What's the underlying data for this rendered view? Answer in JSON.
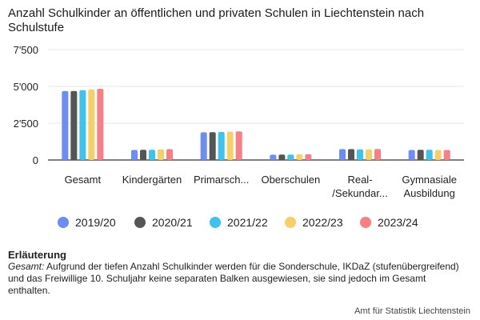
{
  "title": "Anzahl Schulkinder an öffentlichen und privaten Schulen in Liechtenstein nach Schulstufe",
  "legend": [
    {
      "label": "2019/20",
      "color": "#6b8ef5"
    },
    {
      "label": "2020/21",
      "color": "#555555"
    },
    {
      "label": "2021/22",
      "color": "#3cc3ef"
    },
    {
      "label": "2022/23",
      "color": "#f5cf67"
    },
    {
      "label": "2023/24",
      "color": "#f77f85"
    }
  ],
  "note": {
    "heading": "Erläuterung",
    "lead": "Gesamt:",
    "text": " Aufgrund der tiefen Anzahl Schulkinder werden für die Sonderschule, IKDaZ (stufenübergreifend) und das Freiwillige 10. Schuljahr keine separaten Balken ausgewiesen, sie sind jedoch im Gesamt enthalten."
  },
  "source": "Amt für Statistik Liechtenstein",
  "chart_data": {
    "type": "bar",
    "title": "Anzahl Schulkinder an öffentlichen und privaten Schulen in Liechtenstein nach Schulstufe",
    "xlabel": "",
    "ylabel": "",
    "ylim": [
      0,
      7500
    ],
    "yticks": [
      0,
      2500,
      5000,
      7500
    ],
    "ytick_labels": [
      "0",
      "2'500",
      "5'000",
      "7'500"
    ],
    "grid": true,
    "legend_position": "bottom",
    "categories": [
      [
        "Gesamt"
      ],
      [
        "Kindergärten"
      ],
      [
        "Primarsch..."
      ],
      [
        "Oberschulen"
      ],
      [
        "Real-",
        "/Sekundar..."
      ],
      [
        "Gymnasiale",
        "Ausbildung"
      ]
    ],
    "series": [
      {
        "name": "2019/20",
        "color": "#6b8ef5",
        "values": [
          4680,
          680,
          1880,
          360,
          740,
          680
        ]
      },
      {
        "name": "2020/21",
        "color": "#555555",
        "values": [
          4690,
          690,
          1890,
          370,
          740,
          690
        ]
      },
      {
        "name": "2021/22",
        "color": "#3cc3ef",
        "values": [
          4740,
          690,
          1900,
          370,
          720,
          690
        ]
      },
      {
        "name": "2022/23",
        "color": "#f5cf67",
        "values": [
          4790,
          730,
          1920,
          380,
          720,
          680
        ]
      },
      {
        "name": "2023/24",
        "color": "#f77f85",
        "values": [
          4840,
          740,
          1940,
          390,
          750,
          680
        ]
      }
    ]
  }
}
